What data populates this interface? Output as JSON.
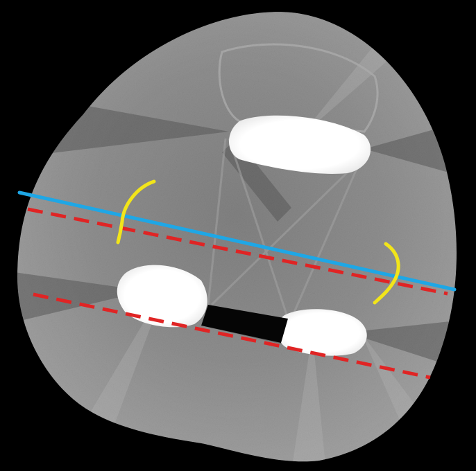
{
  "image": {
    "background": "#000000",
    "tissue_color": "#8a8a8a",
    "implant_color": "#ffffff",
    "annotation_colors": {
      "reference_line": "#1ea7e6",
      "dashed_lines": "#e02424",
      "curves": "#f2e51a"
    },
    "annotations": {
      "solid_lines": 1,
      "dashed_lines": 2,
      "curved_marks": 2
    }
  }
}
